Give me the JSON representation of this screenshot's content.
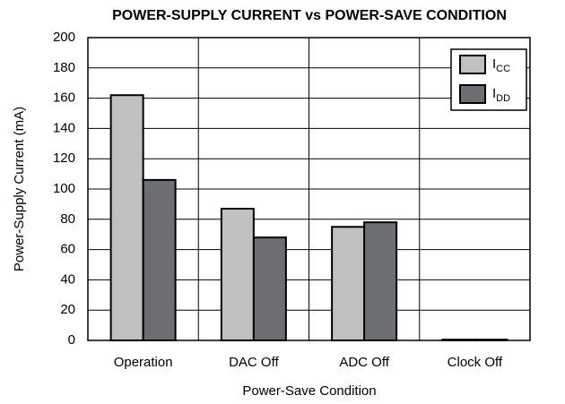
{
  "chart_data": {
    "type": "bar",
    "title": "POWER-SUPPLY CURRENT vs POWER-SAVE CONDITION",
    "x_label": "Power-Save Condition",
    "y_label": "Power-Supply Current (mA)",
    "categories": [
      "Operation",
      "DAC Off",
      "ADC Off",
      "Clock Off"
    ],
    "series": [
      {
        "name": "ICC",
        "color": "#c0c0c0",
        "values": [
          162,
          87,
          75,
          0.5
        ]
      },
      {
        "name": "IDD",
        "color": "#6d6e71",
        "values": [
          106,
          68,
          78,
          0.5
        ]
      }
    ],
    "ylim": [
      0,
      200
    ],
    "yticks": [
      0,
      20,
      40,
      60,
      80,
      100,
      120,
      140,
      160,
      180,
      200
    ],
    "grid": true,
    "legend": "upper right"
  }
}
